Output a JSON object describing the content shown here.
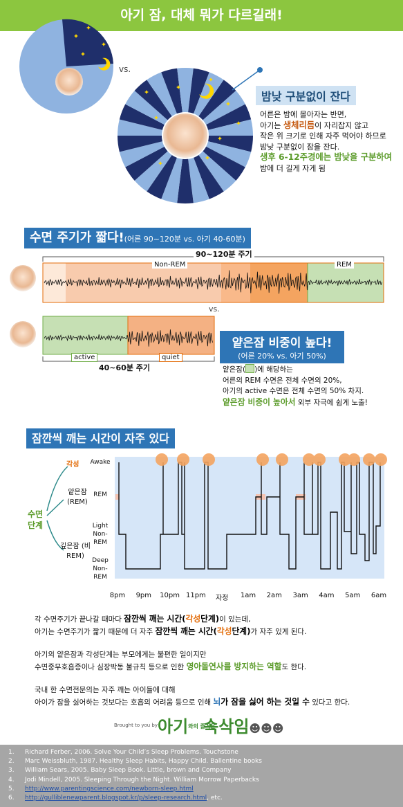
{
  "header": {
    "title": "아기 잠, 대체 뭐가 다르길래!"
  },
  "section1": {
    "vs": "vs.",
    "heading": "밤낮 구분없이 잔다",
    "paragraph": [
      [
        "어른은 밤에 몰아자는 반면,"
      ],
      [
        "아기는 ",
        {
          "text": "생체리듬",
          "color": "#c55a11"
        },
        "이 자리잡지 않고"
      ],
      [
        "작은 위 크기로 인해 자주 먹어야 하므로"
      ],
      [
        "밤낮 구분없이 잠을 잔다."
      ],
      [
        {
          "text": "생후 6-12주경에는 밤낮을 구분하여",
          "color": "#5b9b2a"
        }
      ],
      [
        "밤에 더 길게 자게 됨"
      ]
    ]
  },
  "section2": {
    "heading": "수면 주기가 짧다!",
    "heading_note": "(어른 90~120분 vs. 아기 40-60분)",
    "adult_cycle": "90~120분 주기",
    "non_rem": "Non-REM",
    "rem": "REM",
    "vs": "vs.",
    "active": "active",
    "quiet": "quiet",
    "baby_cycle": "40~60분 주기",
    "subheading": "얕은잠 비중이 높다!",
    "subheading_note": "(어른 20% vs. 아기 50%)",
    "paragraph": [
      [
        "얕은잠(",
        {
          "swatch": "#c6e0b4"
        },
        ")에 해당하는"
      ],
      [
        "어른의 REM 수면은 전체 수면의 20%,"
      ],
      [
        "아기의 active 수면은 전체 수면의 50% 차지."
      ],
      [
        {
          "text": "얕은잠 비중이 높아서",
          "color": "#5b9b2a"
        },
        " 외부 자극에 쉽게 노출!"
      ]
    ]
  },
  "section3": {
    "heading": "잠깐씩 깨는 시간이 자주 있다",
    "tree_root": "수면 단계",
    "stages": [
      "각성",
      "얕은잠 (REM)",
      "깊은잠 (비REM)"
    ],
    "y_labels": [
      "Awake",
      "REM",
      "Light Non-REM",
      "Deep Non-REM"
    ],
    "x_labels": [
      "8pm",
      "9pm",
      "10pm",
      "11pm",
      "자정",
      "1am",
      "2am",
      "3am",
      "4am",
      "5am",
      "6am"
    ]
  },
  "body": {
    "paragraphs": [
      [
        [
          "각 수면주기가 끝나갈 때마다 ",
          {
            "text": "잠깐씩 깨는 시간(",
            "color": "#000"
          },
          {
            "text": "각성",
            "color": "#e36c09"
          },
          {
            "text": "단계)",
            "color": "#000"
          },
          "이 있는데,"
        ],
        [
          "아기는 수면주기가 짧기 때문에 더 자주 ",
          {
            "text": "잠깐씩 깨는 시간(",
            "color": "#000"
          },
          {
            "text": "각성",
            "color": "#e36c09"
          },
          {
            "text": "단계)",
            "color": "#000"
          },
          "가 자주 있게 된다."
        ]
      ],
      [
        [
          "아기의 얕은잠과 각성단계는 부모에게는 불편한 일이지만"
        ],
        [
          "수면중무호흡증이나 심장박동 불규칙 등으로 인한 ",
          {
            "text": "영아돌연사를 방지하는 역할",
            "color": "#5b9b2a"
          },
          "도 한다."
        ]
      ],
      [
        [
          "국내 한 수면전문의는 자주 깨는 아이들에 대해"
        ],
        [
          "아이가 잠을 싫어하는 것보다는 호흡의 어려움 등으로 인해 ",
          {
            "text": "뇌",
            "color": "#2e75b6"
          },
          {
            "text": "가 잠을 싫어 하는 것일 수",
            "color": "#000"
          },
          " 있다고 한다."
        ]
      ]
    ]
  },
  "credit": {
    "by": "Brought to you by",
    "logo": [
      "아기",
      "와의 즐거운",
      "속삭임"
    ]
  },
  "references": [
    {
      "number": "1.",
      "text": "Richard Ferber, 2006. Solve Your Child’s Sleep Problems. Touchstone"
    },
    {
      "number": "2.",
      "text": "Marc Weissbluth, 1987. Healthy Sleep Habits, Happy Child. Ballentine books"
    },
    {
      "number": "3.",
      "text": "William Sears, 2005. Baby Sleep Book. Little, brown and Company"
    },
    {
      "number": "4.",
      "text": "Jodi Mindell, 2005. Sleeping Through the Night. William Morrow Paperbacks"
    },
    {
      "number": "5.",
      "link": "http://www.parentingscience.com/newborn-sleep.html"
    },
    {
      "number": "6.",
      "link": "http://gulliblenewparent.blogspot.kr/p/sleep-research.html",
      "suffix": ", etc."
    }
  ]
}
